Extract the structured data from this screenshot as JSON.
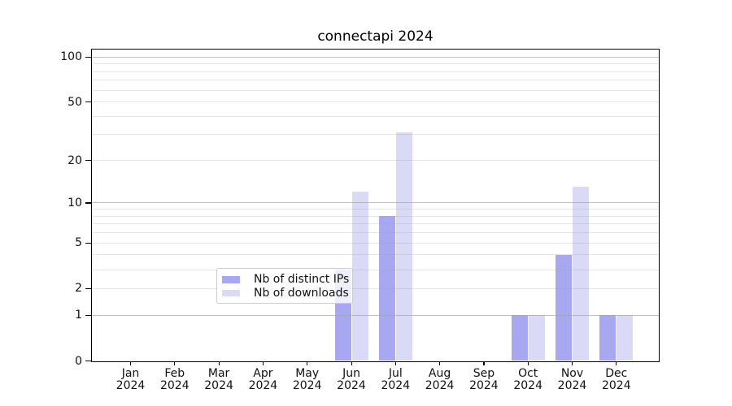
{
  "chart_data": {
    "type": "bar",
    "title": "connectapi 2024",
    "categories": [
      {
        "m": "Jan",
        "y": "2024"
      },
      {
        "m": "Feb",
        "y": "2024"
      },
      {
        "m": "Mar",
        "y": "2024"
      },
      {
        "m": "Apr",
        "y": "2024"
      },
      {
        "m": "May",
        "y": "2024"
      },
      {
        "m": "Jun",
        "y": "2024"
      },
      {
        "m": "Jul",
        "y": "2024"
      },
      {
        "m": "Aug",
        "y": "2024"
      },
      {
        "m": "Sep",
        "y": "2024"
      },
      {
        "m": "Oct",
        "y": "2024"
      },
      {
        "m": "Nov",
        "y": "2024"
      },
      {
        "m": "Dec",
        "y": "2024"
      }
    ],
    "series": [
      {
        "name": "Nb of distinct IPs",
        "color": "#a8a8f2",
        "values": [
          0,
          0,
          0,
          0,
          0,
          3,
          8,
          0,
          0,
          1,
          4,
          1
        ]
      },
      {
        "name": "Nb of downloads",
        "color": "#dadaf7",
        "values": [
          0,
          0,
          0,
          0,
          0,
          12,
          31,
          0,
          0,
          1,
          13,
          1
        ]
      }
    ],
    "y_axis": {
      "scale": "log1p",
      "tick_values": [
        0,
        1,
        2,
        5,
        10,
        20,
        50,
        100
      ],
      "top_value": 112,
      "major_grid_values": [
        1,
        10,
        100
      ],
      "minor_grid_values": [
        2,
        3,
        4,
        5,
        6,
        7,
        8,
        9,
        20,
        30,
        40,
        50,
        60,
        70,
        80,
        90
      ]
    },
    "legend": {
      "position": "lower center"
    },
    "grid": true,
    "colors": {
      "axis": "#000000",
      "grid_base": "#a0a0a0",
      "text": "#111111",
      "background": "#ffffff"
    }
  }
}
